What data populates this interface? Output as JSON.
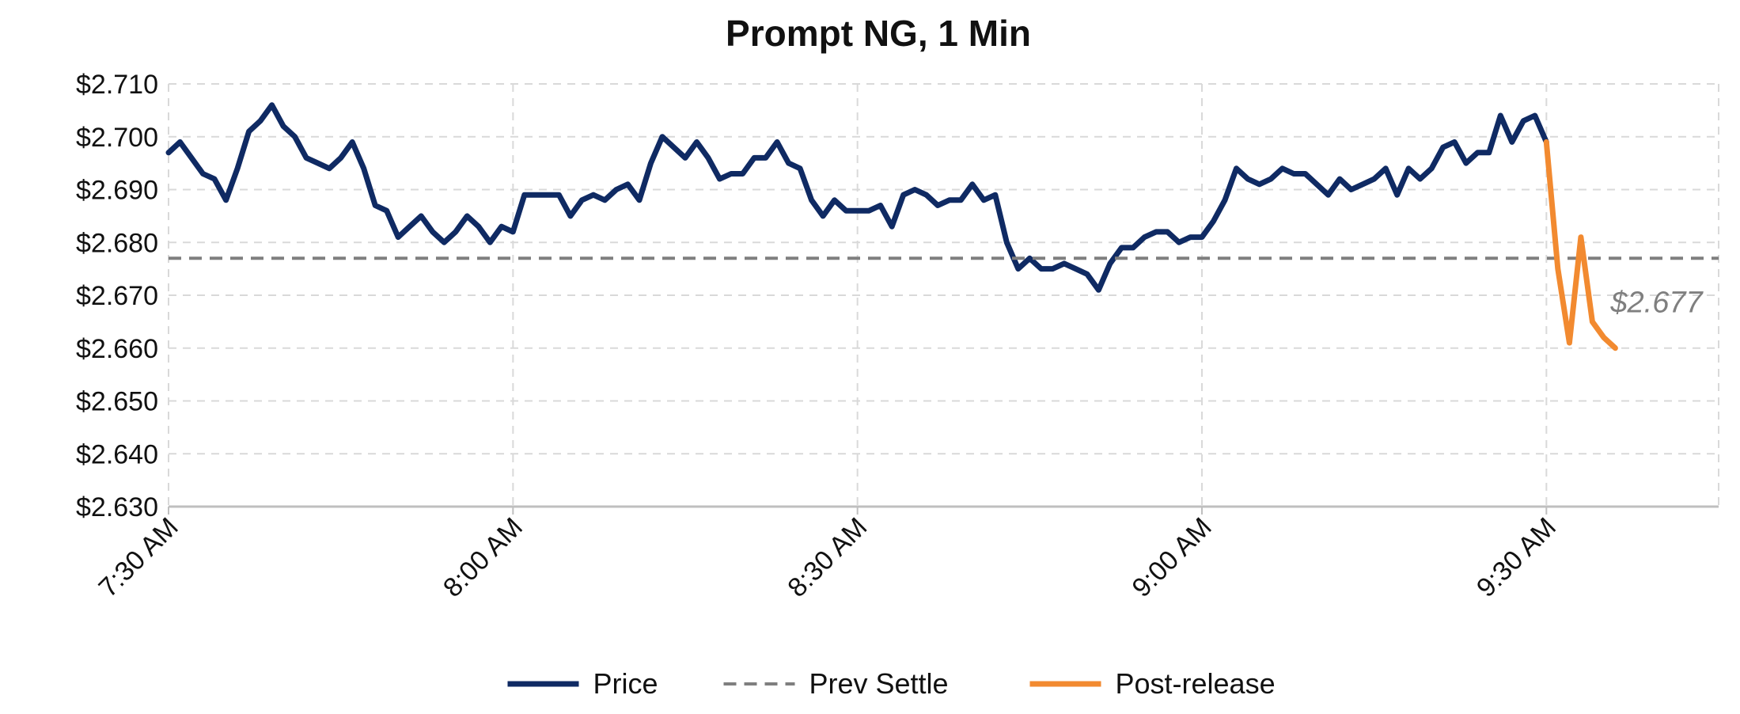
{
  "chart_data": {
    "type": "line",
    "title": "Prompt NG, 1 Min",
    "xlabel": "",
    "ylabel": "",
    "ylim": [
      2.63,
      2.71
    ],
    "y_tick_labels": [
      "$2.630",
      "$2.640",
      "$2.650",
      "$2.660",
      "$2.670",
      "$2.680",
      "$2.690",
      "$2.700",
      "$2.710"
    ],
    "x_tick_labels": [
      "7:30 AM",
      "8:00 AM",
      "8:30 AM",
      "9:00 AM",
      "9:30 AM"
    ],
    "x_unit": "minutes after 7:30 AM",
    "xlim": [
      0,
      135
    ],
    "grid": true,
    "legend_position": "bottom",
    "series": [
      {
        "name": "Price",
        "color": "#0f2a63",
        "x": [
          0,
          1,
          2,
          3,
          4,
          5,
          6,
          7,
          8,
          9,
          10,
          11,
          12,
          13,
          14,
          15,
          16,
          17,
          18,
          19,
          20,
          21,
          22,
          23,
          24,
          25,
          26,
          27,
          28,
          29,
          30,
          31,
          32,
          33,
          34,
          35,
          36,
          37,
          38,
          39,
          40,
          41,
          42,
          43,
          44,
          45,
          46,
          47,
          48,
          49,
          50,
          51,
          52,
          53,
          54,
          55,
          56,
          57,
          58,
          59,
          60,
          61,
          62,
          63,
          64,
          65,
          66,
          67,
          68,
          69,
          70,
          71,
          72,
          73,
          74,
          75,
          76,
          77,
          78,
          79,
          80,
          81,
          82,
          83,
          84,
          85,
          86,
          87,
          88,
          89,
          90,
          91,
          92,
          93,
          94,
          95,
          96,
          97,
          98,
          99,
          100,
          101,
          102,
          103,
          104,
          105,
          106,
          107,
          108,
          109,
          110,
          111,
          112,
          113,
          114,
          115,
          116,
          117,
          118,
          119,
          120
        ],
        "values": [
          2.697,
          2.699,
          2.696,
          2.693,
          2.692,
          2.688,
          2.694,
          2.701,
          2.703,
          2.706,
          2.702,
          2.7,
          2.696,
          2.695,
          2.694,
          2.696,
          2.699,
          2.694,
          2.687,
          2.686,
          2.681,
          2.683,
          2.685,
          2.682,
          2.68,
          2.682,
          2.685,
          2.683,
          2.68,
          2.683,
          2.682,
          2.689,
          2.689,
          2.689,
          2.689,
          2.685,
          2.688,
          2.689,
          2.688,
          2.69,
          2.691,
          2.688,
          2.695,
          2.7,
          2.698,
          2.696,
          2.699,
          2.696,
          2.692,
          2.693,
          2.693,
          2.696,
          2.696,
          2.699,
          2.695,
          2.694,
          2.688,
          2.685,
          2.688,
          2.686,
          2.686,
          2.686,
          2.687,
          2.683,
          2.689,
          2.69,
          2.689,
          2.687,
          2.688,
          2.688,
          2.691,
          2.688,
          2.689,
          2.68,
          2.675,
          2.677,
          2.675,
          2.675,
          2.676,
          2.675,
          2.674,
          2.671,
          2.676,
          2.679,
          2.679,
          2.681,
          2.682,
          2.682,
          2.68,
          2.681,
          2.681,
          2.684,
          2.688,
          2.694,
          2.692,
          2.691,
          2.692,
          2.694,
          2.693,
          2.693,
          2.691,
          2.689,
          2.692,
          2.69,
          2.691,
          2.692,
          2.694,
          2.689,
          2.694,
          2.692,
          2.694,
          2.698,
          2.699,
          2.695,
          2.697,
          2.697,
          2.704,
          2.699,
          2.703,
          2.704,
          2.699
        ]
      },
      {
        "name": "Prev Settle",
        "color": "#7f7f7f",
        "dashed": true,
        "x": [
          0,
          135
        ],
        "values": [
          2.677,
          2.677
        ]
      },
      {
        "name": "Post-release",
        "color": "#f28a30",
        "x": [
          120,
          121,
          122,
          123,
          124,
          125,
          126
        ],
        "values": [
          2.699,
          2.675,
          2.661,
          2.681,
          2.665,
          2.662,
          2.66
        ]
      }
    ],
    "annotations": [
      {
        "text": "$2.677",
        "x": 126,
        "y": 2.668,
        "color": "#7f7f7f"
      }
    ]
  }
}
